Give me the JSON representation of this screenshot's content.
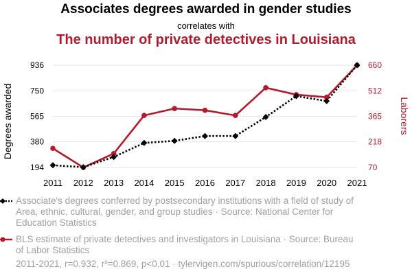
{
  "header": {
    "title": "Associates degrees awarded in gender studies",
    "subtitle": "correlates with",
    "title2": "The number of private detectives in Louisiana"
  },
  "legend": {
    "series1": "Associate's degrees conferred by postsecondary institutions with a field of study of Area, ethnic, cultural, gender, and group studies · Source: National Center for Education Statistics",
    "series2": "BLS estimate of private detectives and investigators in Louisiana · Source: Bureau of Labor Statistics"
  },
  "footer": "2011-2021, r=0.932, r²=0.869, p<0.01 · tylervigen.com/spurious/correlation/12195",
  "colors": {
    "series1": "#000000",
    "series2": "#b41a2e",
    "grid": "#e6e6e6",
    "muted": "#a0a0a0"
  },
  "chart_data": {
    "type": "line",
    "x": [
      2011,
      2012,
      2013,
      2014,
      2015,
      2016,
      2017,
      2018,
      2019,
      2020,
      2021
    ],
    "series": [
      {
        "axis": "left",
        "style": "dotted",
        "marker": "diamond",
        "values": [
          210,
          196,
          270,
          372,
          387,
          422,
          422,
          560,
          712,
          676,
          936
        ]
      },
      {
        "axis": "right",
        "style": "solid",
        "marker": "circle",
        "values": [
          180,
          70,
          150,
          370,
          410,
          400,
          370,
          530,
          490,
          475,
          660
        ]
      }
    ],
    "ylabel_left": "Degrees awarded",
    "ylabel_right": "Laborers",
    "yticks_left": [
      194,
      380,
      565,
      750,
      936
    ],
    "yticks_right": [
      70,
      218,
      365,
      512,
      660
    ],
    "ylim_left": [
      194,
      936
    ],
    "ylim_right": [
      70,
      660
    ],
    "grid": true
  }
}
